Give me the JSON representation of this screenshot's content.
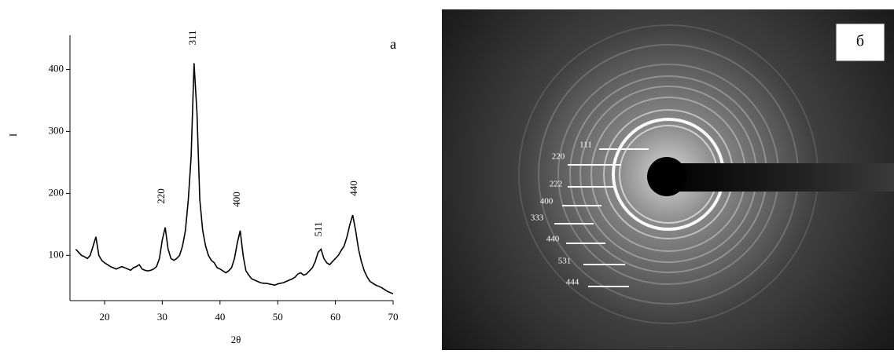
{
  "chart_data": {
    "type": "line",
    "x_label": "2θ",
    "y_label": "I",
    "color": "#000000",
    "xlim": [
      14,
      70
    ],
    "xticks": [
      20,
      30,
      40,
      50,
      60,
      70
    ],
    "ylim": [
      27,
      455
    ],
    "yticks": [
      100,
      200,
      300,
      400
    ],
    "panel_label": "a",
    "annotations": [
      "311",
      "220",
      "400",
      "511",
      "440"
    ],
    "x": [
      15,
      15.5,
      16,
      16.5,
      17,
      17.5,
      18,
      18.5,
      19,
      19.5,
      20,
      20.5,
      21,
      21.5,
      22,
      22.5,
      23,
      23.5,
      24,
      24.5,
      25,
      25.5,
      26,
      26.5,
      27,
      27.5,
      28,
      28.5,
      29,
      29.5,
      30,
      30.5,
      31,
      31.5,
      32,
      32.5,
      33,
      33.5,
      34,
      34.5,
      35,
      35.5,
      36,
      36.5,
      37,
      37.5,
      38,
      38.5,
      39,
      39.5,
      40,
      40.5,
      41,
      41.5,
      42,
      42.5,
      43,
      43.5,
      44,
      44.5,
      45,
      45.5,
      46,
      46.5,
      47,
      47.5,
      48,
      48.5,
      49,
      49.5,
      50,
      50.5,
      51,
      51.5,
      52,
      52.5,
      53,
      53.5,
      54,
      54.5,
      55,
      55.5,
      56,
      56.5,
      57,
      57.5,
      58,
      58.5,
      59,
      59.5,
      60,
      60.5,
      61,
      61.5,
      62,
      62.5,
      63,
      63.5,
      64,
      64.5,
      65,
      65.5,
      66,
      66.5,
      67,
      67.5,
      68,
      68.5,
      69,
      69.5,
      70
    ],
    "values": [
      110,
      105,
      100,
      98,
      95,
      100,
      115,
      130,
      100,
      92,
      88,
      85,
      82,
      80,
      78,
      80,
      82,
      80,
      78,
      76,
      80,
      82,
      85,
      78,
      76,
      75,
      76,
      78,
      82,
      95,
      125,
      145,
      110,
      95,
      92,
      95,
      100,
      115,
      140,
      190,
      260,
      410,
      330,
      190,
      140,
      115,
      100,
      92,
      88,
      80,
      78,
      75,
      72,
      75,
      80,
      95,
      120,
      140,
      100,
      75,
      68,
      62,
      60,
      58,
      56,
      55,
      55,
      54,
      53,
      52,
      54,
      55,
      56,
      58,
      60,
      62,
      65,
      70,
      72,
      68,
      70,
      75,
      80,
      90,
      105,
      110,
      95,
      88,
      85,
      90,
      95,
      100,
      108,
      115,
      130,
      150,
      165,
      140,
      110,
      90,
      75,
      65,
      58,
      55,
      52,
      50,
      48,
      45,
      42,
      40,
      38
    ]
  },
  "diffraction": {
    "panel_label": "б",
    "ring_labels": [
      "111",
      "220",
      "222",
      "400",
      "333",
      "440",
      "531",
      "444"
    ]
  }
}
